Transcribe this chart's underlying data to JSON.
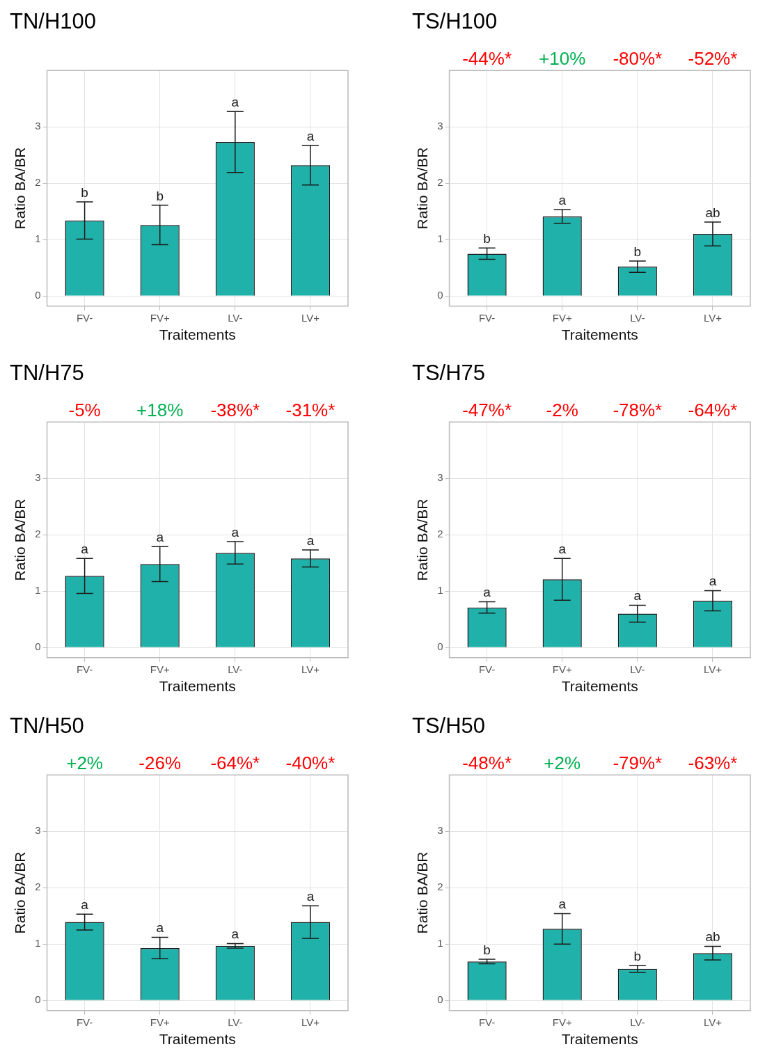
{
  "chart_data": [
    {
      "type": "bar",
      "title": "TN/H100",
      "categories": [
        "FV-",
        "FV+",
        "LV-",
        "LV+"
      ],
      "values": [
        1.34,
        1.26,
        2.73,
        2.32
      ],
      "errors": [
        0.33,
        0.35,
        0.54,
        0.35
      ],
      "color": "#20b2aa",
      "xlabel": "Traitements",
      "ylabel": "Ratio BA/BR",
      "ylim": [
        -0.18,
        4.0
      ],
      "yticks": [
        0,
        1,
        2,
        3
      ],
      "grid": true,
      "annotations": [
        {
          "text": "b",
          "x": "FV-",
          "y": 1.67
        },
        {
          "text": "b",
          "x": "FV+",
          "y": 1.61
        },
        {
          "text": "a",
          "x": "LV-",
          "y": 3.27
        },
        {
          "text": "a",
          "x": "LV+",
          "y": 2.67
        }
      ]
    },
    {
      "type": "bar",
      "title": "TS/H100",
      "categories": [
        "FV-",
        "FV+",
        "LV-",
        "LV+"
      ],
      "values": [
        0.75,
        1.41,
        0.52,
        1.1
      ],
      "errors": [
        0.1,
        0.12,
        0.1,
        0.21
      ],
      "color": "#20b2aa",
      "xlabel": "Traitements",
      "ylabel": "Ratio BA/BR",
      "ylim": [
        -0.18,
        4.0
      ],
      "yticks": [
        0,
        1,
        2,
        3
      ],
      "grid": true,
      "annotations": [
        "-44%*",
        "+10%",
        "-80%*",
        "-52%*",
        {
          "text": "b",
          "x": "FV-",
          "y": 0.85
        },
        {
          "text": "a",
          "x": "FV+",
          "y": 1.53
        },
        {
          "text": "b",
          "x": "LV-",
          "y": 0.62
        },
        {
          "text": "ab",
          "x": "LV+",
          "y": 1.31
        }
      ]
    },
    {
      "type": "bar",
      "title": "TN/H75",
      "categories": [
        "FV-",
        "FV+",
        "LV-",
        "LV+"
      ],
      "values": [
        1.27,
        1.48,
        1.68,
        1.58
      ],
      "errors": [
        0.31,
        0.31,
        0.2,
        0.15
      ],
      "color": "#20b2aa",
      "xlabel": "Traitements",
      "ylabel": "Ratio BA/BR",
      "ylim": [
        -0.18,
        4.0
      ],
      "yticks": [
        0,
        1,
        2,
        3
      ],
      "grid": true,
      "annotations": [
        "-5%",
        "+18%",
        "-38%*",
        "-31%*",
        {
          "text": "a",
          "x": "FV-",
          "y": 1.58
        },
        {
          "text": "a",
          "x": "FV+",
          "y": 1.79
        },
        {
          "text": "a",
          "x": "LV-",
          "y": 1.88
        },
        {
          "text": "a",
          "x": "LV+",
          "y": 1.73
        }
      ]
    },
    {
      "type": "bar",
      "title": "TS/H75",
      "categories": [
        "FV-",
        "FV+",
        "LV-",
        "LV+"
      ],
      "values": [
        0.71,
        1.21,
        0.6,
        0.83
      ],
      "errors": [
        0.1,
        0.37,
        0.15,
        0.18
      ],
      "color": "#20b2aa",
      "xlabel": "Traitements",
      "ylabel": "Ratio BA/BR",
      "ylim": [
        -0.18,
        4.0
      ],
      "yticks": [
        0,
        1,
        2,
        3
      ],
      "grid": true,
      "annotations": [
        "-47%*",
        "-2%",
        "-78%*",
        "-64%*",
        {
          "text": "a",
          "x": "FV-",
          "y": 0.81
        },
        {
          "text": "a",
          "x": "FV+",
          "y": 1.58
        },
        {
          "text": "a",
          "x": "LV-",
          "y": 0.75
        },
        {
          "text": "a",
          "x": "LV+",
          "y": 1.01
        }
      ]
    },
    {
      "type": "bar",
      "title": "TN/H50",
      "categories": [
        "FV-",
        "FV+",
        "LV-",
        "LV+"
      ],
      "values": [
        1.39,
        0.93,
        0.97,
        1.39
      ],
      "errors": [
        0.14,
        0.19,
        0.04,
        0.29
      ],
      "color": "#20b2aa",
      "xlabel": "Traitements",
      "ylabel": "Ratio BA/BR",
      "ylim": [
        -0.18,
        4.0
      ],
      "yticks": [
        0,
        1,
        2,
        3
      ],
      "grid": true,
      "annotations": [
        "+2%",
        "-26%",
        "-64%*",
        "-40%*",
        {
          "text": "a",
          "x": "FV-",
          "y": 1.53
        },
        {
          "text": "a",
          "x": "FV+",
          "y": 1.12
        },
        {
          "text": "a",
          "x": "LV-",
          "y": 1.01
        },
        {
          "text": "a",
          "x": "LV+",
          "y": 1.68
        }
      ]
    },
    {
      "type": "bar",
      "title": "TS/H50",
      "categories": [
        "FV-",
        "FV+",
        "LV-",
        "LV+"
      ],
      "values": [
        0.69,
        1.27,
        0.56,
        0.84
      ],
      "errors": [
        0.04,
        0.27,
        0.06,
        0.12
      ],
      "color": "#20b2aa",
      "xlabel": "Traitements",
      "ylabel": "Ratio BA/BR",
      "ylim": [
        -0.18,
        4.0
      ],
      "yticks": [
        0,
        1,
        2,
        3
      ],
      "grid": true,
      "annotations": [
        "-48%*",
        "+2%",
        "-79%*",
        "-63%*",
        {
          "text": "b",
          "x": "FV-",
          "y": 0.73
        },
        {
          "text": "a",
          "x": "FV+",
          "y": 1.54
        },
        {
          "text": "b",
          "x": "LV-",
          "y": 0.62
        },
        {
          "text": "ab",
          "x": "LV+",
          "y": 0.96
        }
      ]
    }
  ]
}
